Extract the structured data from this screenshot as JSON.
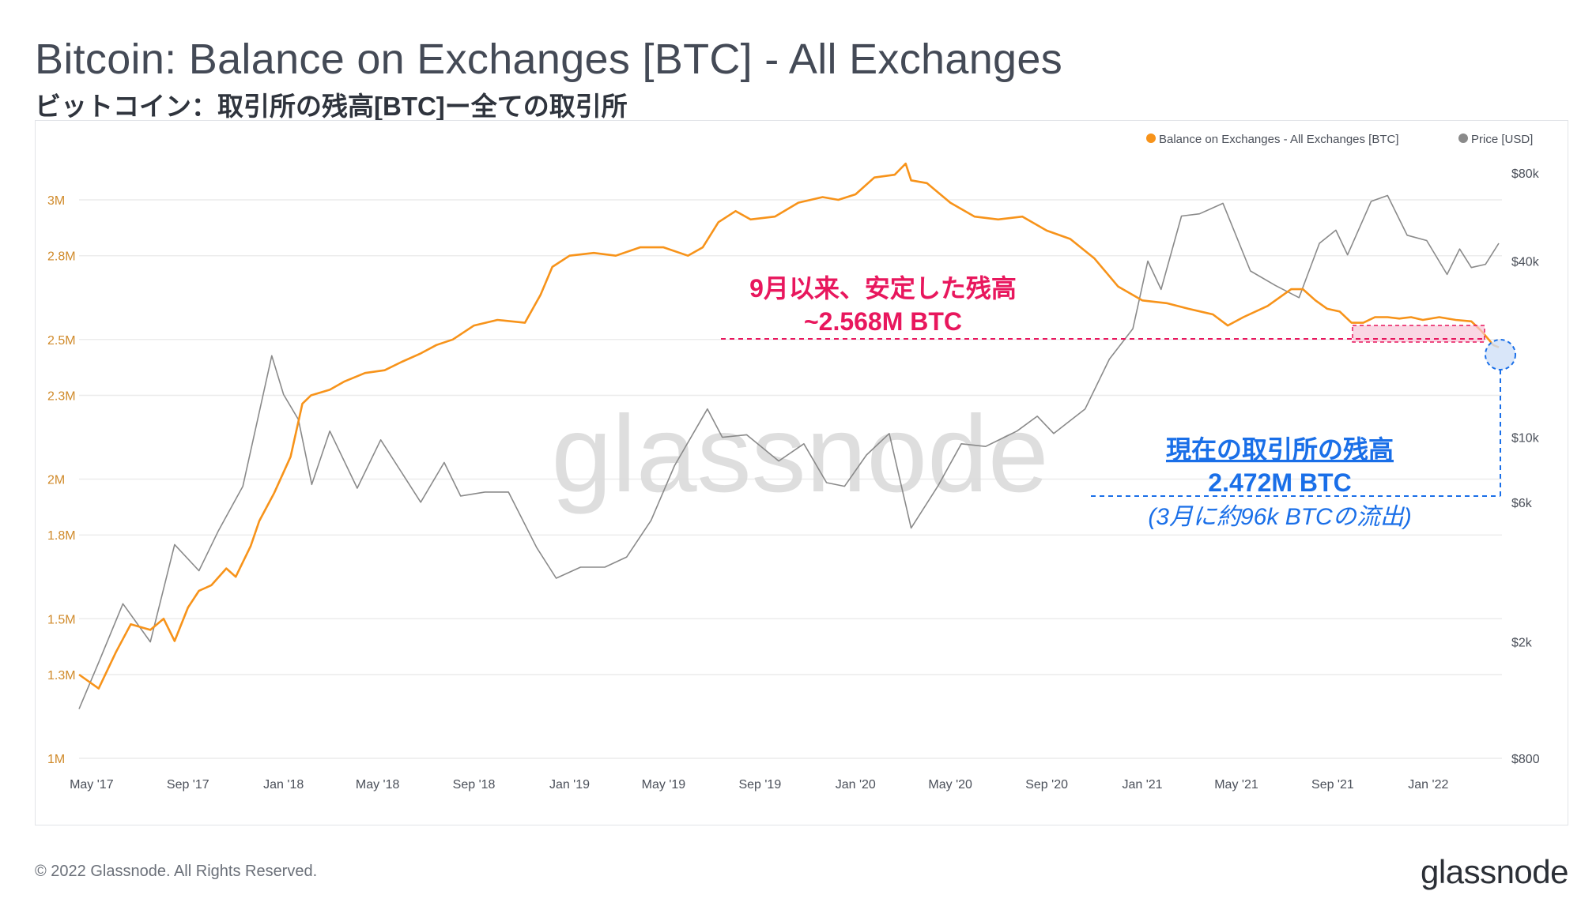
{
  "title": "Bitcoin: Balance on Exchanges [BTC] - All Exchanges",
  "subtitle": "ビットコイン：取引所の残高[BTC]ー全ての取引所",
  "footer": "© 2022 Glassnode. All Rights Reserved.",
  "brand": "glassnode",
  "watermark": "glassnode",
  "annotations": {
    "stable_line1": "9月以来、安定した残高",
    "stable_line2": "~2.568M BTC",
    "current_line1": "現在の取引所の残高",
    "current_line2": "2.472M BTC",
    "current_line3": "(3月に約96k BTCの流出)"
  },
  "colors": {
    "balance": "#f7931a",
    "price": "#8a8a8a",
    "annotation_pink": "#e8175d",
    "annotation_blue": "#1a6fe8"
  },
  "chart_data": {
    "type": "line",
    "legend": {
      "position": "top-right"
    },
    "grid": true,
    "x_ticks": [
      "May '17",
      "Sep '17",
      "Jan '18",
      "May '18",
      "Sep '18",
      "Jan '19",
      "May '19",
      "Sep '19",
      "Jan '20",
      "May '20",
      "Sep '20",
      "Jan '21",
      "May '21",
      "Sep '21",
      "Jan '22"
    ],
    "y_left": {
      "ticks": [
        "1M",
        "1.3M",
        "1.5M",
        "1.8M",
        "2M",
        "2.3M",
        "2.5M",
        "2.8M",
        "3M"
      ],
      "range": [
        1000000,
        3150000
      ]
    },
    "y_right": {
      "scale": "log",
      "ticks": [
        "$800",
        "$2k",
        "$6k",
        "$10k",
        "$40k",
        "$80k"
      ],
      "range": [
        800,
        90000
      ]
    },
    "x_range": [
      "2017-04-15",
      "2022-04-05"
    ],
    "series": [
      {
        "name": "Balance on Exchanges - All Exchanges [BTC]",
        "axis": "left",
        "color": "#f7931a",
        "points": [
          [
            "2017-04-15",
            1300000
          ],
          [
            "2017-05-10",
            1250000
          ],
          [
            "2017-06-01",
            1380000
          ],
          [
            "2017-06-20",
            1480000
          ],
          [
            "2017-07-15",
            1460000
          ],
          [
            "2017-08-01",
            1500000
          ],
          [
            "2017-08-15",
            1420000
          ],
          [
            "2017-09-01",
            1540000
          ],
          [
            "2017-09-15",
            1600000
          ],
          [
            "2017-10-01",
            1620000
          ],
          [
            "2017-10-20",
            1680000
          ],
          [
            "2017-11-01",
            1650000
          ],
          [
            "2017-11-20",
            1760000
          ],
          [
            "2017-12-01",
            1850000
          ],
          [
            "2017-12-20",
            1950000
          ],
          [
            "2018-01-10",
            2080000
          ],
          [
            "2018-01-25",
            2270000
          ],
          [
            "2018-02-05",
            2300000
          ],
          [
            "2018-03-01",
            2320000
          ],
          [
            "2018-03-20",
            2350000
          ],
          [
            "2018-04-15",
            2380000
          ],
          [
            "2018-05-10",
            2390000
          ],
          [
            "2018-06-01",
            2420000
          ],
          [
            "2018-06-25",
            2450000
          ],
          [
            "2018-07-15",
            2480000
          ],
          [
            "2018-08-05",
            2500000
          ],
          [
            "2018-09-01",
            2550000
          ],
          [
            "2018-10-01",
            2570000
          ],
          [
            "2018-11-05",
            2560000
          ],
          [
            "2018-11-25",
            2660000
          ],
          [
            "2018-12-10",
            2760000
          ],
          [
            "2019-01-01",
            2800000
          ],
          [
            "2019-02-01",
            2810000
          ],
          [
            "2019-03-01",
            2800000
          ],
          [
            "2019-04-01",
            2830000
          ],
          [
            "2019-05-01",
            2830000
          ],
          [
            "2019-06-01",
            2800000
          ],
          [
            "2019-06-20",
            2830000
          ],
          [
            "2019-07-10",
            2920000
          ],
          [
            "2019-08-01",
            2960000
          ],
          [
            "2019-08-20",
            2930000
          ],
          [
            "2019-09-20",
            2940000
          ],
          [
            "2019-10-20",
            2990000
          ],
          [
            "2019-11-20",
            3010000
          ],
          [
            "2019-12-10",
            3000000
          ],
          [
            "2020-01-01",
            3020000
          ],
          [
            "2020-01-25",
            3080000
          ],
          [
            "2020-02-20",
            3090000
          ],
          [
            "2020-03-05",
            3130000
          ],
          [
            "2020-03-12",
            3070000
          ],
          [
            "2020-04-01",
            3060000
          ],
          [
            "2020-05-01",
            2990000
          ],
          [
            "2020-06-01",
            2940000
          ],
          [
            "2020-07-01",
            2930000
          ],
          [
            "2020-08-01",
            2940000
          ],
          [
            "2020-09-01",
            2890000
          ],
          [
            "2020-10-01",
            2860000
          ],
          [
            "2020-11-01",
            2790000
          ],
          [
            "2020-12-01",
            2690000
          ],
          [
            "2021-01-01",
            2640000
          ],
          [
            "2021-02-01",
            2630000
          ],
          [
            "2021-03-01",
            2610000
          ],
          [
            "2021-04-01",
            2590000
          ],
          [
            "2021-04-20",
            2550000
          ],
          [
            "2021-05-10",
            2580000
          ],
          [
            "2021-06-10",
            2620000
          ],
          [
            "2021-07-10",
            2680000
          ],
          [
            "2021-07-25",
            2680000
          ],
          [
            "2021-08-10",
            2640000
          ],
          [
            "2021-08-25",
            2610000
          ],
          [
            "2021-09-10",
            2600000
          ],
          [
            "2021-09-25",
            2560000
          ],
          [
            "2021-10-10",
            2560000
          ],
          [
            "2021-10-25",
            2580000
          ],
          [
            "2021-11-10",
            2580000
          ],
          [
            "2021-11-25",
            2575000
          ],
          [
            "2021-12-10",
            2580000
          ],
          [
            "2021-12-25",
            2570000
          ],
          [
            "2022-01-15",
            2580000
          ],
          [
            "2022-02-05",
            2570000
          ],
          [
            "2022-02-25",
            2565000
          ],
          [
            "2022-03-10",
            2530000
          ],
          [
            "2022-03-25",
            2480000
          ],
          [
            "2022-04-01",
            2472000
          ]
        ]
      },
      {
        "name": "Price [USD]",
        "axis": "right",
        "color": "#8a8a8a",
        "points": [
          [
            "2017-04-15",
            1180
          ],
          [
            "2017-05-10",
            1700
          ],
          [
            "2017-06-10",
            2700
          ],
          [
            "2017-07-15",
            2000
          ],
          [
            "2017-08-15",
            4300
          ],
          [
            "2017-09-15",
            3500
          ],
          [
            "2017-10-10",
            4800
          ],
          [
            "2017-11-10",
            6800
          ],
          [
            "2017-12-17",
            19000
          ],
          [
            "2018-01-01",
            14000
          ],
          [
            "2018-01-20",
            11500
          ],
          [
            "2018-02-06",
            6900
          ],
          [
            "2018-03-01",
            10500
          ],
          [
            "2018-04-05",
            6700
          ],
          [
            "2018-05-05",
            9800
          ],
          [
            "2018-06-25",
            6000
          ],
          [
            "2018-07-25",
            8200
          ],
          [
            "2018-08-15",
            6300
          ],
          [
            "2018-09-15",
            6500
          ],
          [
            "2018-10-15",
            6500
          ],
          [
            "2018-11-20",
            4200
          ],
          [
            "2018-12-15",
            3300
          ],
          [
            "2019-01-15",
            3600
          ],
          [
            "2019-02-15",
            3600
          ],
          [
            "2019-03-15",
            3900
          ],
          [
            "2019-04-15",
            5200
          ],
          [
            "2019-05-15",
            8000
          ],
          [
            "2019-06-26",
            12500
          ],
          [
            "2019-07-15",
            10000
          ],
          [
            "2019-08-15",
            10200
          ],
          [
            "2019-09-25",
            8300
          ],
          [
            "2019-10-27",
            9500
          ],
          [
            "2019-11-25",
            7000
          ],
          [
            "2019-12-18",
            6800
          ],
          [
            "2020-01-15",
            8700
          ],
          [
            "2020-02-13",
            10300
          ],
          [
            "2020-03-12",
            4900
          ],
          [
            "2020-04-15",
            6800
          ],
          [
            "2020-05-15",
            9500
          ],
          [
            "2020-06-15",
            9300
          ],
          [
            "2020-07-25",
            10500
          ],
          [
            "2020-08-20",
            11800
          ],
          [
            "2020-09-10",
            10300
          ],
          [
            "2020-10-20",
            12500
          ],
          [
            "2020-11-20",
            18500
          ],
          [
            "2020-12-20",
            23500
          ],
          [
            "2021-01-08",
            40000
          ],
          [
            "2021-01-25",
            32000
          ],
          [
            "2021-02-20",
            57000
          ],
          [
            "2021-03-15",
            58000
          ],
          [
            "2021-04-14",
            63000
          ],
          [
            "2021-05-19",
            37000
          ],
          [
            "2021-06-20",
            33000
          ],
          [
            "2021-07-20",
            30000
          ],
          [
            "2021-08-15",
            46000
          ],
          [
            "2021-09-05",
            51000
          ],
          [
            "2021-09-20",
            42000
          ],
          [
            "2021-10-20",
            64000
          ],
          [
            "2021-11-10",
            67000
          ],
          [
            "2021-12-05",
            49000
          ],
          [
            "2021-12-30",
            47000
          ],
          [
            "2022-01-25",
            36000
          ],
          [
            "2022-02-10",
            44000
          ],
          [
            "2022-02-25",
            38000
          ],
          [
            "2022-03-15",
            39000
          ],
          [
            "2022-04-01",
            46000
          ]
        ]
      }
    ]
  }
}
